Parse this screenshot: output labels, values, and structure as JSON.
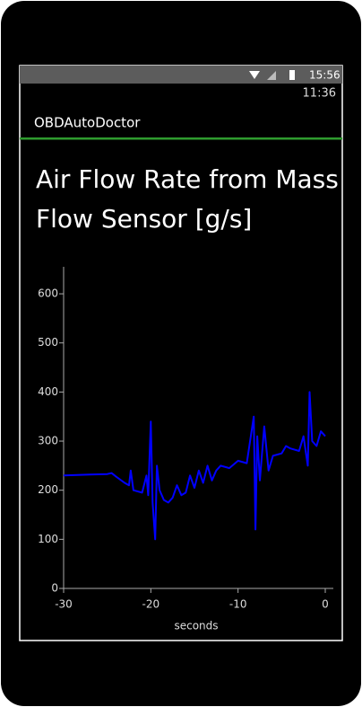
{
  "status_bar": {
    "time": "15:56"
  },
  "app": {
    "time": "11:36",
    "name": "OBDAutoDoctor"
  },
  "chart_data": {
    "type": "line",
    "title": "Air Flow Rate from Mass Flow Sensor [g/s]",
    "x_label": "seconds",
    "x": [
      -30,
      -27,
      -25,
      -24.5,
      -24,
      -23,
      -22.5,
      -22.3,
      -22,
      -21,
      -20.5,
      -20.3,
      -20,
      -19.8,
      -19.5,
      -19.3,
      -19,
      -18.5,
      -18,
      -17.5,
      -17,
      -16.5,
      -16,
      -15.5,
      -15,
      -14.5,
      -14,
      -13.5,
      -13,
      -12.5,
      -12,
      -11,
      -10,
      -9,
      -8.2,
      -8,
      -7.8,
      -7.5,
      -7,
      -6.5,
      -6,
      -5,
      -4.5,
      -4,
      -3,
      -2.5,
      -2,
      -1.8,
      -1.5,
      -1,
      -0.5,
      0
    ],
    "series": [
      {
        "color": "#0000ff",
        "values": [
          230,
          232,
          233,
          235,
          228,
          215,
          210,
          240,
          200,
          195,
          230,
          190,
          340,
          175,
          100,
          250,
          200,
          180,
          175,
          185,
          210,
          190,
          195,
          230,
          205,
          240,
          215,
          250,
          220,
          240,
          250,
          245,
          260,
          255,
          350,
          120,
          310,
          220,
          330,
          240,
          270,
          275,
          290,
          285,
          280,
          310,
          250,
          400,
          300,
          290,
          320,
          310
        ]
      }
    ],
    "xlim": [
      -30,
      0
    ],
    "ylim": [
      0,
      655
    ],
    "xticks": [
      -30,
      -20,
      -10,
      0
    ],
    "yticks": [
      0,
      100,
      200,
      300,
      400,
      500,
      600
    ]
  }
}
